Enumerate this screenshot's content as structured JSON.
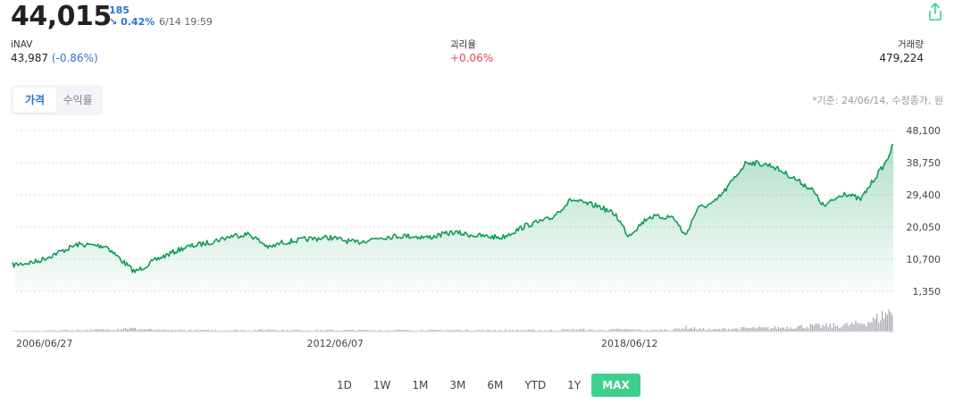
{
  "header": {
    "price": "44,015",
    "change_abs": "185",
    "change_pct": "0.42%",
    "change_arrow": "↘",
    "timestamp": "6/14 19:59",
    "share_icon": "share-icon"
  },
  "stats": {
    "inav_label": "iNAV",
    "inav_value": "43,987",
    "inav_change": "(-0.86%)",
    "premium_label": "괴리율",
    "premium_value": "+0.06%",
    "volume_label": "거래량",
    "volume_value": "479,224"
  },
  "toggle": {
    "options": [
      "가격",
      "수익률"
    ],
    "active": 0
  },
  "basis_note": "*기준: 24/06/14, 수정종가, 원",
  "ranges": {
    "options": [
      "1D",
      "1W",
      "1M",
      "3M",
      "6M",
      "YTD",
      "1Y",
      "MAX"
    ],
    "active": "MAX"
  },
  "colors": {
    "line": "#0f9d58",
    "accent": "#3ecf8e",
    "blue": "#2f72d6",
    "red": "#e5484d",
    "volume": "#a0a4ad"
  },
  "chart_data": {
    "type": "area",
    "y_ticks": [
      "48,100",
      "38,750",
      "29,400",
      "20,050",
      "10,700",
      "1,350"
    ],
    "y_tick_values": [
      48100,
      38750,
      29400,
      20050,
      10700,
      1350
    ],
    "ylim": [
      1350,
      48100
    ],
    "x_tick_labels": [
      "2006/06/27",
      "2012/06/07",
      "2018/06/12"
    ],
    "x_range": [
      "2006/06/27",
      "2024/06/14"
    ],
    "grid": true,
    "series": [
      {
        "x": [
          "2006-06",
          "2006-12",
          "2007-06",
          "2007-10",
          "2008-05",
          "2008-10",
          "2008-12",
          "2009-06",
          "2009-12",
          "2010-06",
          "2010-12",
          "2011-04",
          "2011-09",
          "2011-12",
          "2012-06",
          "2012-12",
          "2013-06",
          "2013-12",
          "2014-06",
          "2014-12",
          "2015-06",
          "2015-12",
          "2016-06",
          "2016-12",
          "2017-06",
          "2017-11",
          "2018-02",
          "2018-06",
          "2018-10",
          "2019-01",
          "2019-06",
          "2019-12",
          "2020-03",
          "2020-06",
          "2020-10",
          "2021-01",
          "2021-06",
          "2021-12",
          "2022-06",
          "2022-10",
          "2023-01",
          "2023-06",
          "2023-10",
          "2024-01",
          "2024-04",
          "2024-06"
        ],
        "values": [
          9000,
          10000,
          13000,
          15000,
          14500,
          9000,
          7000,
          11000,
          14000,
          15500,
          17500,
          18000,
          14000,
          15500,
          16500,
          17000,
          15500,
          17000,
          17500,
          17000,
          18500,
          17500,
          17000,
          20500,
          22500,
          28000,
          27000,
          26000,
          23500,
          17500,
          23000,
          23000,
          17500,
          25500,
          27000,
          31000,
          39000,
          38000,
          34000,
          31000,
          26000,
          30000,
          28000,
          33500,
          38500,
          44015
        ]
      }
    ],
    "volume": [
      1,
      1,
      2,
      2,
      3,
      5,
      4,
      2,
      2,
      2,
      2,
      2,
      3,
      2,
      2,
      2,
      2,
      2,
      2,
      2,
      2,
      2,
      2,
      2,
      2,
      3,
      3,
      2,
      3,
      3,
      2,
      3,
      6,
      4,
      3,
      4,
      5,
      5,
      7,
      8,
      8,
      9,
      12,
      16,
      26,
      30
    ]
  }
}
